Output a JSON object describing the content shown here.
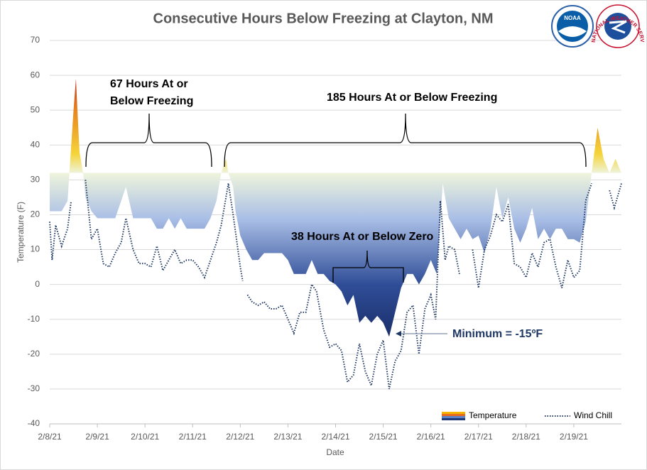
{
  "chart_data": {
    "type": "area_line",
    "title": "Consecutive Hours Below Freezing at Clayton, NM",
    "xlabel": "Date",
    "ylabel": "Temperature  (F)",
    "xlim": [
      0,
      12
    ],
    "ylim": [
      -40,
      70
    ],
    "yticks": [
      -40,
      -30,
      -20,
      -10,
      0,
      10,
      20,
      30,
      40,
      50,
      60,
      70
    ],
    "xticks": [
      {
        "value": 0,
        "label": "2/8/21"
      },
      {
        "value": 1,
        "label": "2/9/21"
      },
      {
        "value": 2,
        "label": "2/10/21"
      },
      {
        "value": 3,
        "label": "2/11/21"
      },
      {
        "value": 4,
        "label": "2/12/21"
      },
      {
        "value": 5,
        "label": "2/13/21"
      },
      {
        "value": 6,
        "label": "2/14/21"
      },
      {
        "value": 7,
        "label": "2/15/21"
      },
      {
        "value": 8,
        "label": "2/16/21"
      },
      {
        "value": 9,
        "label": "2/17/21"
      },
      {
        "value": 10,
        "label": "2/18/21"
      },
      {
        "value": 11,
        "label": "2/19/21"
      }
    ],
    "grid": true,
    "legend": "lower right",
    "area_base": 32,
    "series": [
      {
        "name": "Temperature",
        "kind": "area",
        "x": [
          0,
          0.125,
          0.25,
          0.375,
          0.5,
          0.55,
          0.625,
          0.7,
          0.75,
          0.875,
          1,
          1.125,
          1.25,
          1.375,
          1.5,
          1.6,
          1.75,
          1.875,
          2,
          2.125,
          2.25,
          2.375,
          2.5,
          2.625,
          2.75,
          2.875,
          3,
          3.125,
          3.25,
          3.375,
          3.5,
          3.6,
          3.7,
          3.75,
          3.85,
          3.9,
          4,
          4.125,
          4.25,
          4.375,
          4.5,
          4.625,
          4.75,
          4.875,
          5,
          5.125,
          5.25,
          5.375,
          5.5,
          5.625,
          5.75,
          5.875,
          6,
          6.125,
          6.25,
          6.375,
          6.5,
          6.625,
          6.75,
          6.875,
          7,
          7.125,
          7.25,
          7.375,
          7.5,
          7.625,
          7.75,
          7.875,
          8,
          8.125,
          8.25,
          8.375,
          8.5,
          8.625,
          8.75,
          8.875,
          9,
          9.125,
          9.25,
          9.375,
          9.5,
          9.625,
          9.75,
          9.875,
          10,
          10.125,
          10.25,
          10.375,
          10.5,
          10.625,
          10.75,
          10.875,
          11,
          11.125,
          11.25,
          11.375,
          11.5,
          11.625,
          11.75,
          11.875,
          12
        ],
        "values": [
          21,
          21,
          21,
          24,
          50,
          59,
          38,
          32,
          25,
          21,
          19,
          19,
          19,
          19,
          24,
          28,
          19,
          19,
          19,
          19,
          16,
          16,
          19,
          16,
          19,
          16,
          16,
          16,
          16,
          19,
          24,
          32,
          36,
          32,
          28,
          21,
          14,
          10,
          7,
          7,
          9,
          9,
          9,
          9,
          7,
          3,
          3,
          3,
          7,
          3,
          3,
          1,
          0,
          -2,
          -6,
          -3,
          -11,
          -9,
          -11,
          -9,
          -11,
          -15,
          -8,
          -1,
          3,
          3,
          0,
          3,
          7,
          3,
          29,
          19,
          16,
          13,
          16,
          13,
          14,
          9,
          16,
          28,
          19,
          25,
          16,
          12,
          16,
          22,
          13,
          16,
          13,
          16,
          16,
          13,
          13,
          12,
          18,
          32,
          45,
          36,
          32,
          36,
          32
        ]
      },
      {
        "name": "Wind Chill",
        "kind": "line",
        "color": "#1f3864",
        "x": [
          0,
          0.05,
          0.125,
          0.25,
          0.375,
          0.45,
          0.5,
          0.75,
          0.875,
          1,
          1.125,
          1.25,
          1.375,
          1.5,
          1.6,
          1.75,
          1.875,
          2,
          2.125,
          2.25,
          2.375,
          2.5,
          2.625,
          2.75,
          2.875,
          3,
          3.125,
          3.25,
          3.375,
          3.5,
          3.6,
          3.75,
          3.85,
          4,
          4.05,
          4.1,
          4.15,
          4.25,
          4.375,
          4.5,
          4.625,
          4.75,
          4.875,
          5,
          5.125,
          5.25,
          5.375,
          5.5,
          5.6,
          5.75,
          5.875,
          6,
          6.125,
          6.25,
          6.375,
          6.5,
          6.625,
          6.75,
          6.875,
          7,
          7.125,
          7.25,
          7.375,
          7.5,
          7.625,
          7.75,
          7.875,
          8,
          8.1,
          8.2,
          8.3,
          8.375,
          8.5,
          8.6,
          8.625,
          8.75,
          8.8,
          8.875,
          9,
          9.125,
          9.25,
          9.375,
          9.5,
          9.625,
          9.75,
          9.875,
          10,
          10.125,
          10.25,
          10.375,
          10.5,
          10.625,
          10.75,
          10.875,
          11,
          11.125,
          11.25,
          11.375,
          11.5,
          11.75,
          11.85,
          12
        ],
        "values": [
          18,
          7,
          17,
          11,
          16,
          24,
          null,
          30,
          13,
          16,
          6,
          5,
          9,
          12,
          19,
          10,
          6,
          6,
          5,
          11,
          4,
          7,
          10,
          6,
          7,
          7,
          5,
          2,
          7,
          12,
          17,
          29,
          20,
          5,
          1,
          null,
          -3,
          -5,
          -6,
          -5,
          -7,
          -7,
          -6,
          -10,
          -14,
          -8,
          -8,
          0,
          -2,
          -13,
          -18,
          -17,
          -19,
          -28,
          -26,
          -17,
          -25,
          -29,
          -20,
          -16,
          -30,
          -22,
          -19,
          -8,
          -6,
          -20,
          -7,
          -3,
          -10,
          24,
          7,
          11,
          10,
          3,
          null,
          11,
          null,
          10,
          -1,
          10,
          14,
          20,
          18,
          23,
          6,
          5,
          2,
          9,
          5,
          12,
          13,
          5,
          -1,
          7,
          2,
          4,
          24,
          29,
          null,
          27,
          22,
          29
        ]
      }
    ],
    "annotations": [
      "67 Hours At or",
      "Below Freezing",
      "185 Hours At or Below Freezing",
      "38 Hours At or Below Zero",
      "Minimum = -15ºF"
    ],
    "logos": [
      "NOAA",
      "NATIONAL WEATHER SERVICE"
    ]
  }
}
